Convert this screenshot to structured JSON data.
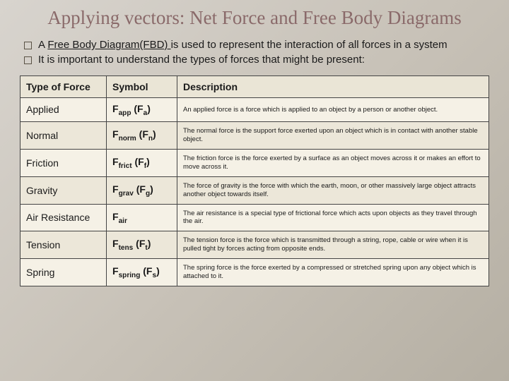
{
  "title": "Applying vectors: Net Force and Free Body Diagrams",
  "bullets": [
    {
      "pre": "A ",
      "underlined": "Free Body Diagram(FBD) ",
      "post": "is used to represent the interaction of all forces in a system"
    },
    {
      "pre": "It is important to understand the types of forces that might be present:",
      "underlined": "",
      "post": ""
    }
  ],
  "table": {
    "headers": [
      "Type of Force",
      "Symbol",
      "Description"
    ],
    "rows": [
      {
        "type": "Applied",
        "sym_base": "F",
        "sym_sub1": "app",
        "sym_alt_base": "F",
        "sym_alt_sub": "a",
        "desc": "An applied force is a force which is applied to an object by a person or another object."
      },
      {
        "type": "Normal",
        "sym_base": "F",
        "sym_sub1": "norm",
        "sym_alt_base": "F",
        "sym_alt_sub": "n",
        "desc": "The normal force is the support force exerted upon an object which is in contact with another stable object."
      },
      {
        "type": "Friction",
        "sym_base": "F",
        "sym_sub1": "frict",
        "sym_alt_base": "F",
        "sym_alt_sub": "f",
        "desc": "The friction force is the force exerted by a surface as an object moves across it or makes an effort to move across it."
      },
      {
        "type": "Gravity",
        "sym_base": "F",
        "sym_sub1": "grav",
        "sym_alt_base": "F",
        "sym_alt_sub": "g",
        "desc": "The force of gravity is the force with which the earth, moon, or other massively large object attracts another object towards itself."
      },
      {
        "type": "Air Resistance",
        "sym_base": "F",
        "sym_sub1": "air",
        "sym_alt_base": "",
        "sym_alt_sub": "",
        "desc": "The air resistance is a special type of frictional force which acts upon objects as they travel through the air."
      },
      {
        "type": "Tension",
        "sym_base": "F",
        "sym_sub1": "tens",
        "sym_alt_base": "F",
        "sym_alt_sub": "t",
        "desc": "The tension force is the force which is transmitted through a string, rope, cable or wire when it is pulled tight by forces acting from opposite ends."
      },
      {
        "type": "Spring",
        "sym_base": "F",
        "sym_sub1": "spring",
        "sym_alt_base": "F",
        "sym_alt_sub": "s",
        "desc": "The spring force is the force exerted by a compressed or stretched spring upon any object which is attached to it."
      }
    ]
  },
  "colors": {
    "title": "#8a6a6a",
    "bg_gradient_start": "#d8d4ce",
    "bg_gradient_end": "#b5afa3",
    "table_bg": "#f3efe3",
    "border": "#444444"
  }
}
